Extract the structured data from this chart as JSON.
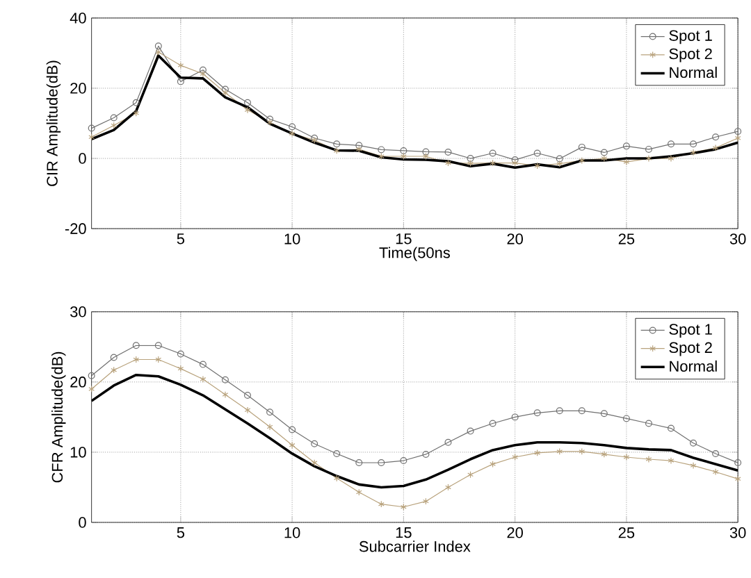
{
  "chart_data": [
    {
      "type": "line",
      "xlabel": "Time(50ns",
      "ylabel": "CIR Amplitude(dB)",
      "x": [
        1,
        2,
        3,
        4,
        5,
        6,
        7,
        8,
        9,
        10,
        11,
        12,
        13,
        14,
        15,
        16,
        17,
        18,
        19,
        20,
        21,
        22,
        23,
        24,
        25,
        26,
        27,
        28,
        29,
        30
      ],
      "xlim": [
        1,
        30
      ],
      "xticks": [
        5,
        10,
        15,
        20,
        25,
        30
      ],
      "ylim": [
        -20,
        40
      ],
      "yticks": [
        -20,
        0,
        20,
        40
      ],
      "grid": true,
      "legend": "top right",
      "series": [
        {
          "name": "Spot 1",
          "color": "#707070",
          "marker": "circle",
          "values": [
            8.6,
            11.6,
            15.9,
            32,
            21.9,
            25.2,
            19.7,
            15.9,
            11.2,
            9,
            5.8,
            4.1,
            3.7,
            2.5,
            2.2,
            1.9,
            1.8,
            0,
            1.5,
            -0.4,
            1.5,
            -0.1,
            3.2,
            1.7,
            3.5,
            2.6,
            4.1,
            4.1,
            6.1,
            7.7
          ]
        },
        {
          "name": "Spot 2",
          "color": "#b8a27c",
          "marker": "cross",
          "values": [
            6.1,
            9.4,
            12.9,
            30.3,
            26.5,
            24.1,
            18.7,
            13.8,
            10.3,
            7.1,
            5.2,
            2.2,
            2.6,
            0.6,
            0.6,
            0.6,
            -1.3,
            -1.4,
            -1.3,
            -1.3,
            -2.1,
            -1.5,
            -0.6,
            0,
            -1,
            0,
            0,
            1.7,
            3,
            5.8
          ]
        },
        {
          "name": "Normal",
          "color": "#000000",
          "marker": "none",
          "values": [
            5.5,
            8.1,
            13.5,
            29.3,
            23,
            22.8,
            17.4,
            14.6,
            9.9,
            7.1,
            4.5,
            2.3,
            2.2,
            0.3,
            -0.3,
            -0.4,
            -0.8,
            -2.2,
            -1.5,
            -2.6,
            -1.7,
            -2.5,
            -0.6,
            -0.6,
            0,
            0,
            0.6,
            1.5,
            2.6,
            4.5
          ]
        }
      ]
    },
    {
      "type": "line",
      "xlabel": "Subcarrier Index",
      "ylabel": "CFR Amplitude(dB)",
      "x": [
        1,
        2,
        3,
        4,
        5,
        6,
        7,
        8,
        9,
        10,
        11,
        12,
        13,
        14,
        15,
        16,
        17,
        18,
        19,
        20,
        21,
        22,
        23,
        24,
        25,
        26,
        27,
        28,
        29,
        30
      ],
      "xlim": [
        1,
        30
      ],
      "xticks": [
        5,
        10,
        15,
        20,
        25,
        30
      ],
      "ylim": [
        0,
        30
      ],
      "yticks": [
        0,
        10,
        20,
        30
      ],
      "grid": true,
      "legend": "top right",
      "series": [
        {
          "name": "Spot 1",
          "color": "#707070",
          "marker": "circle",
          "values": [
            20.9,
            23.5,
            25.2,
            25.2,
            24,
            22.5,
            20.3,
            18.1,
            15.7,
            13.2,
            11.2,
            9.8,
            8.5,
            8.5,
            8.8,
            9.7,
            11.4,
            13,
            14.1,
            15,
            15.6,
            15.9,
            15.9,
            15.5,
            14.8,
            14.1,
            13.4,
            11.3,
            9.8,
            8.5
          ]
        },
        {
          "name": "Spot 2",
          "color": "#b8a27c",
          "marker": "cross",
          "values": [
            19,
            21.7,
            23.2,
            23.2,
            21.9,
            20.4,
            18.2,
            16,
            13.6,
            11,
            8.5,
            6.3,
            4.3,
            2.6,
            2.2,
            3,
            5,
            6.8,
            8.3,
            9.3,
            9.9,
            10.1,
            10.1,
            9.7,
            9.3,
            9,
            8.8,
            8.1,
            7.2,
            6.2
          ]
        },
        {
          "name": "Normal",
          "color": "#000000",
          "marker": "none",
          "values": [
            17.3,
            19.5,
            21,
            20.8,
            19.6,
            18.1,
            16.1,
            14.1,
            12,
            9.8,
            8,
            6.6,
            5.4,
            5,
            5.2,
            6.1,
            7.5,
            9,
            10.3,
            11,
            11.4,
            11.4,
            11.3,
            11,
            10.6,
            10.4,
            10.3,
            9.2,
            8.3,
            7.4
          ]
        }
      ]
    }
  ]
}
